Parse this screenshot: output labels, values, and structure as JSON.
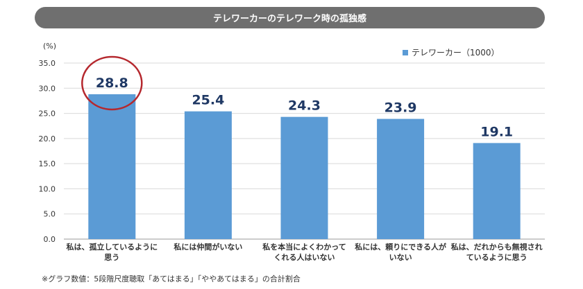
{
  "header": {
    "title": "テレワーカーのテレワーク時の孤独感"
  },
  "chart_data": {
    "type": "bar",
    "title": "テレワーカーのテレワーク時の孤独感",
    "unit_label": "(%)",
    "ylim": [
      0,
      35
    ],
    "yticks": [
      "0.0",
      "5.0",
      "10.0",
      "15.0",
      "20.0",
      "25.0",
      "30.0",
      "35.0"
    ],
    "grid": true,
    "legend_position": "top-right",
    "categories": [
      [
        "私は、孤立しているように",
        "思う"
      ],
      [
        "私には仲間がいない"
      ],
      [
        "私を本当によくわかって",
        "くれる人はいない"
      ],
      [
        "私には、頼りにできる人が",
        "いない"
      ],
      [
        "私は、だれからも無視され",
        "ているように思う"
      ]
    ],
    "series": [
      {
        "name": "テレワーカー（1000）",
        "color": "#5b9bd5",
        "values": [
          28.8,
          25.4,
          24.3,
          23.9,
          19.1
        ],
        "labels": [
          "28.8",
          "25.4",
          "24.3",
          "23.9",
          "19.1"
        ]
      }
    ],
    "highlight_index": 0,
    "highlight_color": "#b5282e",
    "label_color": "#1f3864"
  },
  "footnote": "※グラフ数値：5段階尺度聴取「あてはまる」「ややあてはまる」の合計割合"
}
